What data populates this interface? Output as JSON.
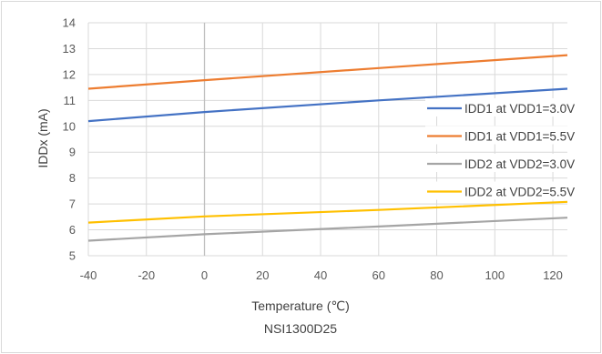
{
  "chart_data": {
    "type": "line",
    "title": "NSI1300D25",
    "xlabel": "Temperature (℃)",
    "ylabel": "IDDx (mA)",
    "xlim": [
      -40,
      125
    ],
    "ylim": [
      5,
      14
    ],
    "xticks": [
      -40,
      -20,
      0,
      20,
      40,
      60,
      80,
      100,
      120
    ],
    "yticks": [
      5,
      6,
      7,
      8,
      9,
      10,
      11,
      12,
      13,
      14
    ],
    "grid": true,
    "legend_position": "right",
    "series": [
      {
        "name": "IDD1 at VDD1=3.0V",
        "color": "#4472c4",
        "x": [
          -40,
          0,
          60,
          125
        ],
        "y": [
          10.2,
          10.55,
          11.0,
          11.45
        ]
      },
      {
        "name": "IDD1 at VDD1=5.5V",
        "color": "#ed7d31",
        "x": [
          -40,
          0,
          60,
          125
        ],
        "y": [
          11.45,
          11.78,
          12.25,
          12.75
        ]
      },
      {
        "name": "IDD2 at VDD2=3.0V",
        "color": "#a5a5a5",
        "x": [
          -40,
          0,
          60,
          125
        ],
        "y": [
          5.58,
          5.83,
          6.13,
          6.47
        ]
      },
      {
        "name": "IDD2 at VDD2=5.5V",
        "color": "#ffc000",
        "x": [
          -40,
          0,
          60,
          125
        ],
        "y": [
          6.28,
          6.52,
          6.77,
          7.08
        ]
      }
    ]
  }
}
